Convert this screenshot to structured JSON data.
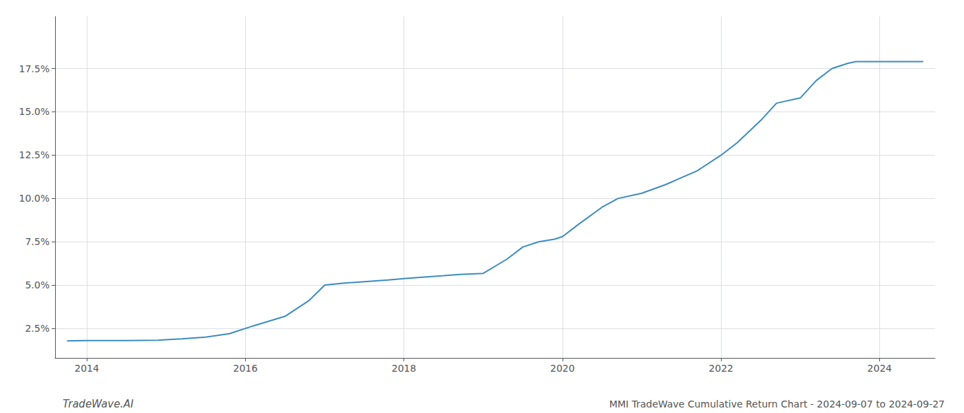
{
  "chart_data": {
    "type": "line",
    "x": [
      2013.75,
      2014.0,
      2014.5,
      2014.9,
      2015.0,
      2015.2,
      2015.5,
      2015.8,
      2016.1,
      2016.5,
      2016.8,
      2017.0,
      2017.2,
      2017.5,
      2017.8,
      2018.0,
      2018.2,
      2018.5,
      2018.7,
      2019.0,
      2019.3,
      2019.5,
      2019.7,
      2019.9,
      2020.0,
      2020.2,
      2020.5,
      2020.7,
      2021.0,
      2021.3,
      2021.5,
      2021.7,
      2022.0,
      2022.2,
      2022.5,
      2022.7,
      2023.0,
      2023.2,
      2023.4,
      2023.6,
      2023.7,
      2024.0,
      2024.3,
      2024.55
    ],
    "values": [
      1.78,
      1.8,
      1.8,
      1.82,
      1.85,
      1.9,
      2.0,
      2.2,
      2.65,
      3.2,
      4.1,
      5.0,
      5.1,
      5.2,
      5.3,
      5.38,
      5.45,
      5.55,
      5.62,
      5.68,
      6.5,
      7.2,
      7.5,
      7.65,
      7.8,
      8.5,
      9.5,
      10.0,
      10.3,
      10.8,
      11.2,
      11.6,
      12.5,
      13.2,
      14.5,
      15.5,
      15.8,
      16.8,
      17.5,
      17.8,
      17.9,
      17.9,
      17.9,
      17.9
    ],
    "color": "#3a8bbf",
    "xlim": [
      2013.6,
      2024.7
    ],
    "xticks": [
      2014,
      2016,
      2018,
      2020,
      2022,
      2024
    ],
    "ylim": [
      0.8,
      20.5
    ],
    "yticks": [
      {
        "value": 2.5,
        "label": "2.5%"
      },
      {
        "value": 5.0,
        "label": "5.0%"
      },
      {
        "value": 7.5,
        "label": "7.5%"
      },
      {
        "value": 10.0,
        "label": "10.0%"
      },
      {
        "value": 12.5,
        "label": "12.5%"
      },
      {
        "value": 15.0,
        "label": "15.0%"
      },
      {
        "value": 17.5,
        "label": "17.5%"
      }
    ],
    "grid": true,
    "annotations": [
      "TradeWave.AI",
      "MMI TradeWave Cumulative Return Chart - 2024-09-07 to 2024-09-27"
    ]
  }
}
